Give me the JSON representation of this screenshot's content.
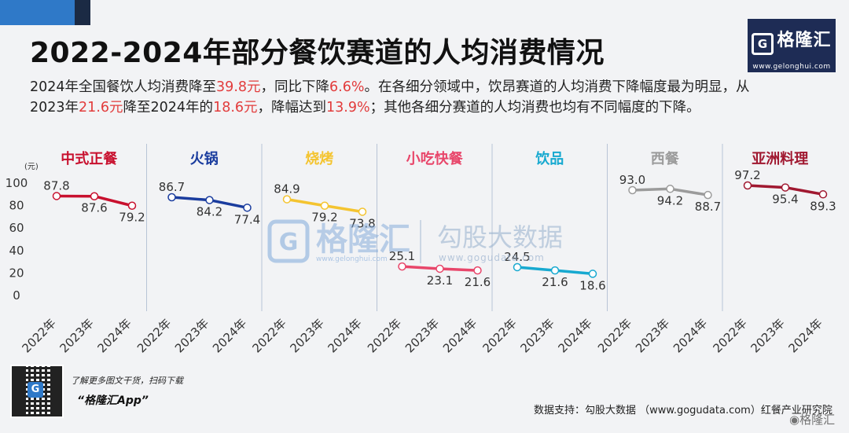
{
  "title": "2022-2024年部分餐饮赛道的人均消费情况",
  "logo": {
    "icon": "G",
    "name": "格隆汇",
    "url": "www.gelonghui.com"
  },
  "description": {
    "p1": "2024年全国餐饮人均消费降至",
    "h1": "39.8元",
    "p2": "，同比下降",
    "h2": "6.6%",
    "p3": "。在各细分领域中，饮昂赛道的人均消费下降幅度最为明显，从2023年",
    "h3": "21.6元",
    "p4": "降至2024年的",
    "h4": "18.6元",
    "p5": "，降幅达到",
    "h5": "13.9%",
    "p6": "；其他各细分赛道的人均消费也均有不同幅度的下降。"
  },
  "watermark": {
    "icon": "G",
    "gelonghui": "格隆汇",
    "gelonghui_url": "www.gelonghui.com",
    "gogu": "勾股大数据",
    "gogu_url": "www.gogudata.com"
  },
  "chart_data": {
    "type": "line",
    "yunit": "(元)",
    "ylim": [
      0,
      100
    ],
    "yticks": [
      0,
      20,
      40,
      60,
      80,
      100
    ],
    "x": [
      "2022年",
      "2023年",
      "2024年"
    ],
    "series": [
      {
        "name": "中式正餐",
        "values": [
          87.8,
          87.6,
          79.2
        ],
        "color": "#c8102e"
      },
      {
        "name": "火锅",
        "values": [
          86.7,
          84.2,
          77.4
        ],
        "color": "#1a3c9e"
      },
      {
        "name": "烧烤",
        "values": [
          84.9,
          79.2,
          73.8
        ],
        "color": "#f4c430"
      },
      {
        "name": "小吃快餐",
        "values": [
          25.1,
          23.1,
          21.6
        ],
        "color": "#e8466a"
      },
      {
        "name": "饮品",
        "values": [
          24.5,
          21.6,
          18.6
        ],
        "color": "#17a9d0"
      },
      {
        "name": "西餐",
        "values": [
          93.0,
          94.2,
          88.7
        ],
        "color": "#9b9b9b"
      },
      {
        "name": "亚洲料理",
        "values": [
          97.2,
          95.4,
          89.3
        ],
        "color": "#a01830"
      }
    ]
  },
  "footer": {
    "promo_line": "了解更多图文干货，扫码下载",
    "app_name": "“格隆汇App”",
    "source": "数据支持：勾股大数据 （www.gogudata.com）红餐产业研究院",
    "corner_logo": "格隆汇"
  }
}
